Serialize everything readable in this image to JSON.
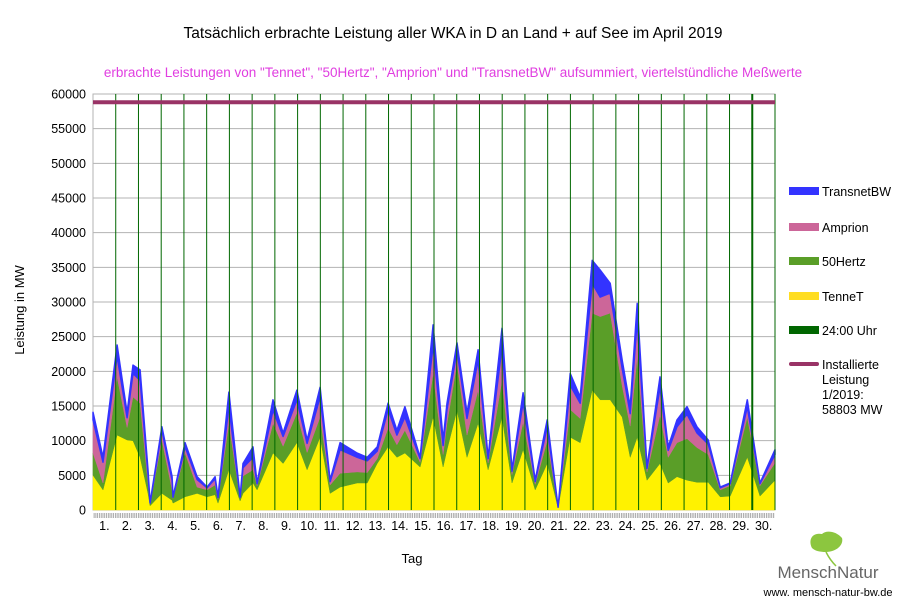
{
  "chart_data": {
    "type": "area",
    "stacked": true,
    "title": "Tatsächlich erbrachte Leistung aller WKA in D an Land + auf See im April 2019",
    "subtitle": "erbrachte Leistungen von \"Tennet\", \"50Hertz\", \"Amprion\" und \"TransnetBW\" aufsummiert, viertelstündliche Meßwerte",
    "xlabel": "Tag",
    "ylabel": "Leistung in MW",
    "xlim": [
      0,
      30
    ],
    "ylim": [
      0,
      60000
    ],
    "yticks": [
      0,
      5000,
      10000,
      15000,
      20000,
      25000,
      30000,
      35000,
      40000,
      45000,
      50000,
      55000,
      60000
    ],
    "xtick_labels": [
      "1.",
      "2.",
      "3.",
      "4.",
      "5.",
      "6.",
      "7.",
      "8.",
      "9.",
      "10.",
      "11.",
      "12.",
      "13.",
      "14.",
      "15.",
      "16.",
      "17.",
      "18.",
      "19.",
      "20.",
      "21.",
      "22.",
      "23.",
      "24.",
      "25.",
      "26.",
      "27.",
      "28.",
      "29.",
      "30."
    ],
    "grid": true,
    "legend_position": "right",
    "installed_capacity": 58803,
    "day_lines": [
      1,
      2,
      3,
      4,
      5,
      6,
      7,
      8,
      9,
      10,
      11,
      12,
      13,
      14,
      15,
      16,
      17,
      18,
      19,
      20,
      21,
      22,
      23,
      24,
      25,
      26,
      27,
      28,
      29,
      30
    ],
    "series": [
      {
        "name": "TenneT",
        "color": "#fff200"
      },
      {
        "name": "50Hertz",
        "color": "#5a9e28"
      },
      {
        "name": "Amprion",
        "color": "#cc6699"
      },
      {
        "name": "TransnetBW",
        "color": "#3333ff"
      }
    ],
    "points_columns": [
      "day",
      "TenneT",
      "50Hertz",
      "Amprion",
      "TransnetBW"
    ],
    "points": [
      [
        0.0,
        5000,
        3200,
        4800,
        1100
      ],
      [
        0.44,
        2900,
        1000,
        3000,
        700
      ],
      [
        1.06,
        10800,
        8400,
        3000,
        1600
      ],
      [
        1.5,
        10100,
        1800,
        1400,
        700
      ],
      [
        1.76,
        10000,
        6300,
        3400,
        1200
      ],
      [
        2.07,
        7600,
        7800,
        3300,
        1500
      ],
      [
        2.42,
        2400,
        1500,
        1300,
        600
      ],
      [
        2.51,
        600,
        300,
        100,
        50
      ],
      [
        3.03,
        2400,
        7700,
        1400,
        500
      ],
      [
        3.48,
        1400,
        1500,
        1400,
        500
      ],
      [
        3.52,
        1000,
        700,
        150,
        50
      ],
      [
        4.05,
        1900,
        6300,
        900,
        600
      ],
      [
        4.58,
        2400,
        900,
        1100,
        400
      ],
      [
        5.02,
        1900,
        1000,
        300,
        100
      ],
      [
        5.37,
        2200,
        1400,
        900,
        300
      ],
      [
        5.5,
        1000,
        600,
        200,
        100
      ],
      [
        5.98,
        5800,
        6700,
        2400,
        2100
      ],
      [
        6.47,
        1300,
        400,
        150,
        50
      ],
      [
        6.6,
        2400,
        2500,
        1200,
        600
      ],
      [
        7.04,
        3900,
        1900,
        1800,
        1500
      ],
      [
        7.22,
        2900,
        600,
        300,
        100
      ],
      [
        7.92,
        8200,
        4300,
        1900,
        1500
      ],
      [
        8.36,
        6700,
        2500,
        1400,
        500
      ],
      [
        8.97,
        9700,
        4300,
        1900,
        1400
      ],
      [
        9.42,
        5800,
        2500,
        1300,
        500
      ],
      [
        9.99,
        10500,
        2900,
        2900,
        1400
      ],
      [
        10.43,
        2400,
        1200,
        500,
        200
      ],
      [
        10.87,
        3300,
        2000,
        3400,
        1000
      ],
      [
        11.62,
        3900,
        1600,
        2100,
        600
      ],
      [
        12.06,
        3900,
        1500,
        1700,
        500
      ],
      [
        12.5,
        6700,
        700,
        1100,
        600
      ],
      [
        12.98,
        9100,
        2700,
        2700,
        900
      ],
      [
        13.37,
        7600,
        1800,
        1400,
        700
      ],
      [
        13.72,
        8200,
        3300,
        1900,
        1500
      ],
      [
        14.39,
        6200,
        700,
        500,
        200
      ],
      [
        14.96,
        13400,
        6300,
        4000,
        3000
      ],
      [
        15.4,
        6200,
        1800,
        1300,
        800
      ],
      [
        15.57,
        8700,
        3800,
        2000,
        900
      ],
      [
        16.01,
        14400,
        6800,
        1800,
        1100
      ],
      [
        16.45,
        7600,
        3200,
        2400,
        800
      ],
      [
        16.94,
        12500,
        4800,
        4300,
        1500
      ],
      [
        17.38,
        5800,
        1000,
        600,
        200
      ],
      [
        17.99,
        13400,
        5300,
        4800,
        2700
      ],
      [
        18.43,
        3900,
        1200,
        500,
        200
      ],
      [
        18.92,
        8700,
        4000,
        2800,
        1400
      ],
      [
        19.45,
        2900,
        800,
        400,
        200
      ],
      [
        19.98,
        6700,
        3300,
        2000,
        1000
      ],
      [
        20.46,
        300,
        70,
        20,
        10
      ],
      [
        20.99,
        10500,
        4000,
        3500,
        1700
      ],
      [
        21.43,
        9700,
        3500,
        2200,
        900
      ],
      [
        21.96,
        17300,
        11100,
        4300,
        3300
      ],
      [
        22.31,
        15900,
        12000,
        2800,
        3900
      ],
      [
        22.75,
        15900,
        12500,
        2900,
        1400
      ],
      [
        23.28,
        13400,
        4500,
        2500,
        1200
      ],
      [
        23.63,
        7600,
        4500,
        1800,
        1000
      ],
      [
        23.94,
        10500,
        11600,
        5200,
        2500
      ],
      [
        24.37,
        4300,
        1200,
        500,
        200
      ],
      [
        24.94,
        6700,
        7000,
        4000,
        1500
      ],
      [
        25.3,
        3900,
        3700,
        1000,
        500
      ],
      [
        25.69,
        4800,
        4900,
        2300,
        1000
      ],
      [
        26.13,
        4300,
        6000,
        3500,
        1100
      ],
      [
        26.57,
        4000,
        5000,
        2100,
        900
      ],
      [
        27.06,
        4000,
        4000,
        1500,
        600
      ],
      [
        27.59,
        1900,
        1000,
        300,
        100
      ],
      [
        28.03,
        2000,
        1500,
        300,
        100
      ],
      [
        28.78,
        7600,
        5800,
        1500,
        1000
      ],
      [
        29.34,
        2000,
        1500,
        300,
        100
      ],
      [
        30.0,
        4300,
        2500,
        1200,
        700
      ]
    ],
    "legend": [
      {
        "label": "TransnetBW",
        "color": "#3333ff",
        "kind": "area"
      },
      {
        "label": "Amprion",
        "color": "#cc6699",
        "kind": "area"
      },
      {
        "label": "50Hertz",
        "color": "#5a9e28",
        "kind": "area"
      },
      {
        "label": "TenneT",
        "color": "#ffdd22",
        "kind": "area"
      },
      {
        "label": "24:00 Uhr",
        "color": "#006600",
        "kind": "line"
      },
      {
        "label_lines": [
          "Installierte",
          "Leistung",
          "1/2019:",
          "58803 MW"
        ],
        "color": "#993366",
        "kind": "line"
      }
    ]
  },
  "logo": {
    "name": "MenschNatur",
    "url": "www. mensch-natur-bw.de"
  }
}
